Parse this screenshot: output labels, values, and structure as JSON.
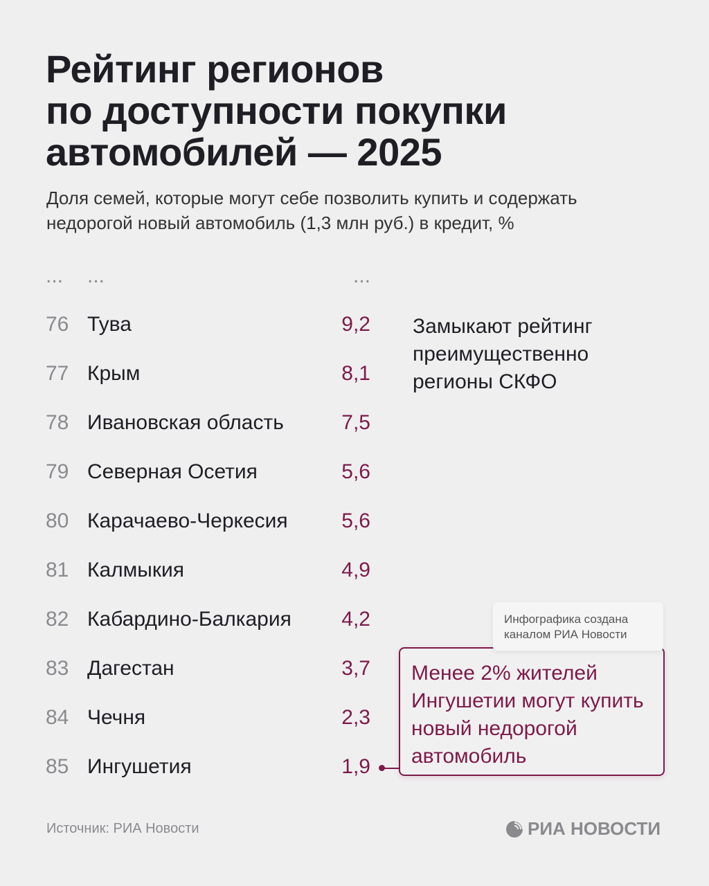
{
  "title_lines": [
    "Рейтинг регионов",
    "по доступности покупки",
    "автомобилей — 2025"
  ],
  "subtitle_lines": [
    "Доля семей, которые могут себе позволить купить и содержать",
    "недорогой новый автомобиль (1,3 млн руб.) в кредит, %"
  ],
  "ellipsis": {
    "rank": "...",
    "name": "...",
    "value": "..."
  },
  "rows": [
    {
      "rank": "76",
      "name": "Тува",
      "value": "9,2"
    },
    {
      "rank": "77",
      "name": "Крым",
      "value": "8,1"
    },
    {
      "rank": "78",
      "name": "Ивановская область",
      "value": "7,5"
    },
    {
      "rank": "79",
      "name": "Северная Осетия",
      "value": "5,6"
    },
    {
      "rank": "80",
      "name": "Карачаево-Черкесия",
      "value": "5,6"
    },
    {
      "rank": "81",
      "name": "Калмыкия",
      "value": "4,9"
    },
    {
      "rank": "82",
      "name": "Кабардино-Балкария",
      "value": "4,2"
    },
    {
      "rank": "83",
      "name": "Дагестан",
      "value": "3,7"
    },
    {
      "rank": "84",
      "name": "Чечня",
      "value": "2,3"
    },
    {
      "rank": "85",
      "name": "Ингушетия",
      "value": "1,9"
    }
  ],
  "note_lines": [
    "Замыкают рейтинг",
    "преимущественно",
    "регионы СКФО"
  ],
  "credit_lines": [
    "Инфографика создана",
    "каналом РИА Новости"
  ],
  "callout_lines": [
    "Менее 2% жителей",
    "Ингушетии могут купить",
    "новый недорогой",
    "автомобиль"
  ],
  "source": "Источник: РИА Новости",
  "logo_text": "РИА НОВОСТИ",
  "colors": {
    "accent": "#7d1a4a",
    "background": "#f0eff0",
    "text": "#1e1e24",
    "muted": "#8a8a8e"
  }
}
